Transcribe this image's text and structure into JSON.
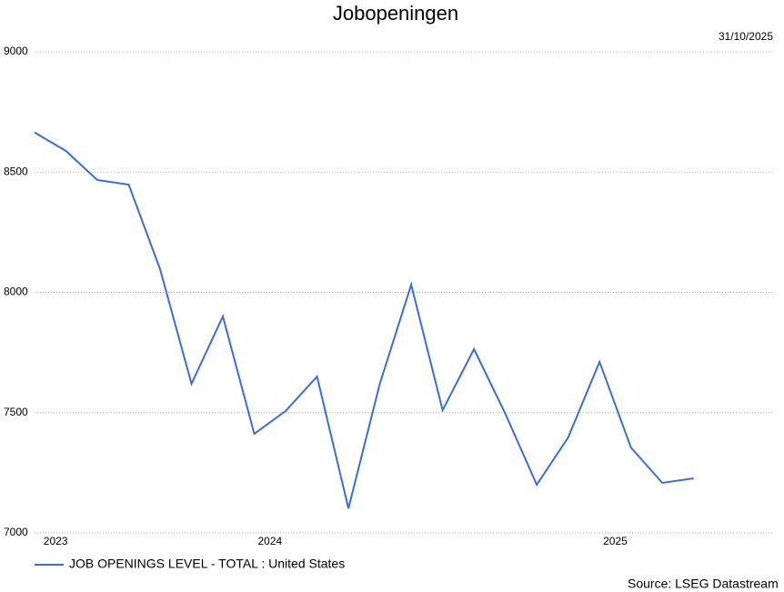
{
  "chart_data": {
    "type": "line",
    "title": "Jobopeningen",
    "date": "31/10/2025",
    "source": "Source: LSEG Datastream",
    "x": [
      0,
      1,
      2,
      3,
      4,
      5,
      6,
      7,
      8,
      9,
      10,
      11,
      12,
      13,
      14,
      15,
      16,
      17,
      18,
      19,
      20,
      21
    ],
    "series": [
      {
        "name": "JOB OPENINGS LEVEL - TOTAL : United States",
        "color": "#3a6be0",
        "values": [
          8665,
          8588,
          8467,
          8448,
          8096,
          7620,
          7900,
          7412,
          7507,
          7650,
          7102,
          7620,
          8032,
          7510,
          7764,
          7495,
          7200,
          7397,
          7711,
          7355,
          7208,
          7227
        ]
      }
    ],
    "xlim": [
      0,
      23.5
    ],
    "xticks": [
      {
        "value": 0.67,
        "label": "2023"
      },
      {
        "value": 7.5,
        "label": "2024"
      },
      {
        "value": 18.5,
        "label": "2025"
      }
    ],
    "ylim": [
      7000,
      9000
    ],
    "yticks": [
      7000,
      7500,
      8000,
      8500,
      9000
    ],
    "grid": true
  }
}
